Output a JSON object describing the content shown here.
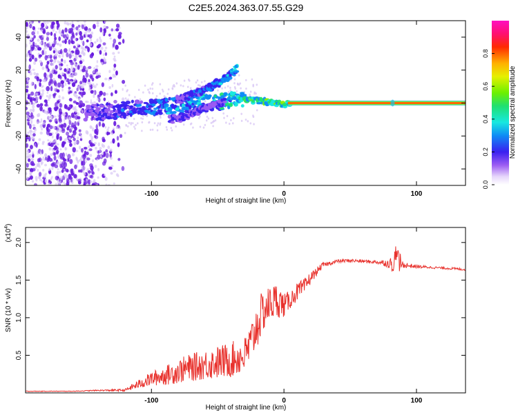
{
  "title": "C2E5.2024.363.07.55.G29",
  "colors": {
    "snr_line": "#e8312c",
    "spectral_purple": "#6a1ee0",
    "spectral_light": "#d9c8f5"
  },
  "chart_data": [
    {
      "type": "heatmap",
      "name": "spectrogram",
      "xlabel": "Height of straight line (km)",
      "ylabel": "Frequency (Hz)",
      "xlim": [
        -195,
        137
      ],
      "ylim": [
        -50,
        50
      ],
      "xticks": [
        -100,
        0,
        100
      ],
      "xtick_labels": [
        "-100",
        "0",
        "100"
      ],
      "yticks": [
        -40,
        -20,
        0,
        20,
        40
      ],
      "ytick_labels": [
        "-40",
        "-20",
        "0",
        "20",
        "40"
      ],
      "ridge_main": [
        [
          -150,
          -6
        ],
        [
          -130,
          -5
        ],
        [
          -110,
          -3
        ],
        [
          -90,
          -2
        ],
        [
          -75,
          -1
        ],
        [
          -60,
          0
        ],
        [
          -45,
          1
        ],
        [
          -35,
          3
        ],
        [
          -25,
          2
        ],
        [
          -15,
          1
        ],
        [
          -5,
          0
        ],
        [
          0,
          -1
        ],
        [
          5,
          0
        ],
        [
          137,
          0
        ]
      ],
      "ridge_upper": [
        [
          -80,
          2
        ],
        [
          -70,
          5
        ],
        [
          -60,
          8
        ],
        [
          -50,
          12
        ],
        [
          -40,
          17
        ],
        [
          -36,
          21
        ]
      ],
      "ridge_lower": [
        [
          -85,
          -10
        ],
        [
          -75,
          -8
        ],
        [
          -65,
          -5
        ],
        [
          -55,
          -2
        ],
        [
          -45,
          1
        ]
      ],
      "colorbar": {
        "label": "Normalized spectral amplitude",
        "range": [
          0,
          1
        ],
        "ticks": [
          0.0,
          0.2,
          0.4,
          0.6,
          0.8
        ],
        "tick_labels": [
          "0.0",
          "0.2",
          "0.4",
          "0.6",
          "0.8"
        ]
      }
    },
    {
      "type": "line",
      "name": "snr",
      "xlabel": "Height of straight line (km)",
      "ylabel": "SNR (10 * v/v)",
      "ylabel_multiplier": "(x10",
      "ylabel_exponent": "4",
      "xlim": [
        -195,
        137
      ],
      "ylim": [
        0,
        2.2
      ],
      "xticks": [
        -100,
        0,
        100
      ],
      "xtick_labels": [
        "-100",
        "0",
        "100"
      ],
      "yticks": [
        0.5,
        1.0,
        1.5,
        2.0
      ],
      "ytick_labels": [
        "0.5",
        "1.0",
        "1.5",
        "2.0"
      ],
      "series": [
        {
          "name": "SNR",
          "x": [
            -195,
            -160,
            -140,
            -120,
            -115,
            -100,
            -85,
            -75,
            -60,
            -50,
            -40,
            -30,
            -25,
            -20,
            -15,
            -10,
            -5,
            0,
            5,
            10,
            15,
            20,
            25,
            30,
            40,
            50,
            60,
            70,
            75,
            80,
            85,
            90,
            100,
            110,
            120,
            130,
            137
          ],
          "values": [
            0.02,
            0.02,
            0.03,
            0.03,
            0.06,
            0.15,
            0.2,
            0.25,
            0.3,
            0.32,
            0.35,
            0.4,
            0.55,
            0.8,
            1.0,
            1.1,
            1.15,
            1.1,
            1.2,
            1.3,
            1.35,
            1.5,
            1.6,
            1.7,
            1.75,
            1.76,
            1.75,
            1.74,
            1.73,
            1.72,
            1.75,
            1.7,
            1.68,
            1.67,
            1.66,
            1.65,
            1.64
          ],
          "noise": [
            0.005,
            0.005,
            0.01,
            0.02,
            0.05,
            0.12,
            0.18,
            0.22,
            0.25,
            0.28,
            0.3,
            0.3,
            0.35,
            0.4,
            0.35,
            0.3,
            0.3,
            0.2,
            0.15,
            0.15,
            0.15,
            0.1,
            0.06,
            0.04,
            0.03,
            0.03,
            0.03,
            0.03,
            0.05,
            0.08,
            0.3,
            0.05,
            0.03,
            0.02,
            0.02,
            0.02,
            0.02
          ]
        }
      ]
    }
  ]
}
